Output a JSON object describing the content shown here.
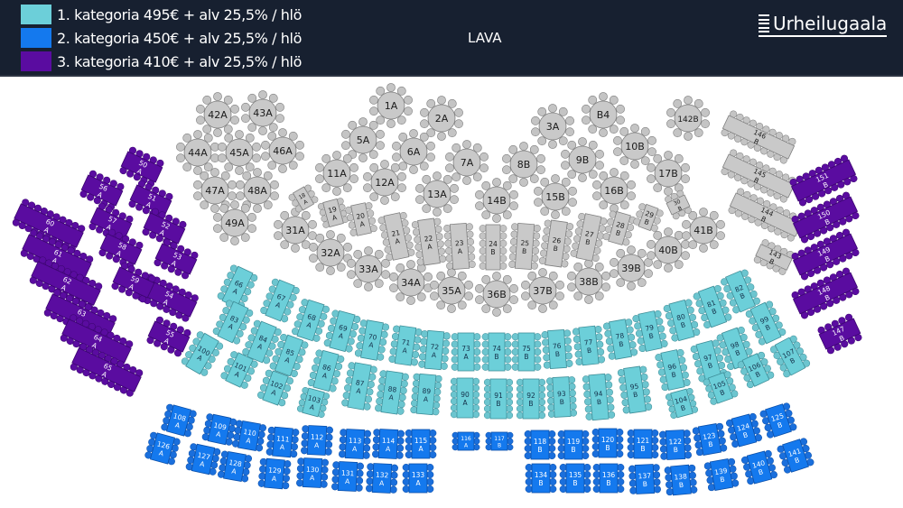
{
  "legend": [
    {
      "label": "1. kategoria 495€ + alv 25,5% / hlö",
      "color": "#6ccfd9"
    },
    {
      "label": "2. kategoria 450€ + alv 25,5% / hlö",
      "color": "#1479ee"
    },
    {
      "label": "3. kategoria 410€ + alv 25,5% / hlö",
      "color": "#5a0ca0"
    }
  ],
  "stage_label": "LAVA",
  "logo_text": "Urheilugaala",
  "colors": {
    "header_bg": "#172030",
    "unassigned": "#c8c8c8",
    "category_1": "#6ccfd9",
    "category_2": "#1479ee",
    "category_3": "#5a0ca0"
  },
  "tables": [
    {
      "label": "1A",
      "cat": "0"
    },
    {
      "label": "2A",
      "cat": "0"
    },
    {
      "label": "3A",
      "cat": "0"
    },
    {
      "label": "B4",
      "cat": "0"
    },
    {
      "label": "142B",
      "cat": "0"
    },
    {
      "label": "5A",
      "cat": "0"
    },
    {
      "label": "6A",
      "cat": "0"
    },
    {
      "label": "7A",
      "cat": "0"
    },
    {
      "label": "8B",
      "cat": "0"
    },
    {
      "label": "9B",
      "cat": "0"
    },
    {
      "label": "10B",
      "cat": "0"
    },
    {
      "label": "11A",
      "cat": "0"
    },
    {
      "label": "12A",
      "cat": "0"
    },
    {
      "label": "13A",
      "cat": "0"
    },
    {
      "label": "14B",
      "cat": "0"
    },
    {
      "label": "15B",
      "cat": "0"
    },
    {
      "label": "16B",
      "cat": "0"
    },
    {
      "label": "17B",
      "cat": "0"
    },
    {
      "label": "31A",
      "cat": "0"
    },
    {
      "label": "32A",
      "cat": "0"
    },
    {
      "label": "33A",
      "cat": "0"
    },
    {
      "label": "34A",
      "cat": "0"
    },
    {
      "label": "35A",
      "cat": "0"
    },
    {
      "label": "36B",
      "cat": "0"
    },
    {
      "label": "37B",
      "cat": "0"
    },
    {
      "label": "38B",
      "cat": "0"
    },
    {
      "label": "39B",
      "cat": "0"
    },
    {
      "label": "40B",
      "cat": "0"
    },
    {
      "label": "41B",
      "cat": "0"
    },
    {
      "label": "42A",
      "cat": "0"
    },
    {
      "label": "43A",
      "cat": "0"
    },
    {
      "label": "44A",
      "cat": "0"
    },
    {
      "label": "45A",
      "cat": "0"
    },
    {
      "label": "46A",
      "cat": "0"
    },
    {
      "label": "47A",
      "cat": "0"
    },
    {
      "label": "48A",
      "cat": "0"
    },
    {
      "label": "49A",
      "cat": "0"
    },
    {
      "num": "18",
      "row": "A",
      "cat": "0"
    },
    {
      "num": "19",
      "row": "A",
      "cat": "0"
    },
    {
      "num": "20",
      "row": "A",
      "cat": "0"
    },
    {
      "num": "21",
      "row": "A",
      "cat": "0"
    },
    {
      "num": "22",
      "row": "A",
      "cat": "0"
    },
    {
      "num": "23",
      "row": "A",
      "cat": "0"
    },
    {
      "num": "24",
      "row": "B",
      "cat": "0"
    },
    {
      "num": "25",
      "row": "B",
      "cat": "0"
    },
    {
      "num": "26",
      "row": "B",
      "cat": "0"
    },
    {
      "num": "27",
      "row": "B",
      "cat": "0"
    },
    {
      "num": "28",
      "row": "B",
      "cat": "0"
    },
    {
      "num": "29",
      "row": "B",
      "cat": "0"
    },
    {
      "num": "30",
      "row": "B",
      "cat": "0"
    },
    {
      "num": "146",
      "row": "B",
      "cat": "0"
    },
    {
      "num": "145",
      "row": "B",
      "cat": "0"
    },
    {
      "num": "144",
      "row": "B",
      "cat": "0"
    },
    {
      "num": "143",
      "row": "B",
      "cat": "0"
    },
    {
      "num": "66",
      "row": "A",
      "cat": "1"
    },
    {
      "num": "67",
      "row": "A",
      "cat": "1"
    },
    {
      "num": "68",
      "row": "A",
      "cat": "1"
    },
    {
      "num": "69",
      "row": "A",
      "cat": "1"
    },
    {
      "num": "70",
      "row": "A",
      "cat": "1"
    },
    {
      "num": "71",
      "row": "A",
      "cat": "1"
    },
    {
      "num": "72",
      "row": "A",
      "cat": "1"
    },
    {
      "num": "73",
      "row": "A",
      "cat": "1"
    },
    {
      "num": "74",
      "row": "B",
      "cat": "1"
    },
    {
      "num": "75",
      "row": "B",
      "cat": "1"
    },
    {
      "num": "76",
      "row": "B",
      "cat": "1"
    },
    {
      "num": "77",
      "row": "B",
      "cat": "1"
    },
    {
      "num": "78",
      "row": "B",
      "cat": "1"
    },
    {
      "num": "79",
      "row": "B",
      "cat": "1"
    },
    {
      "num": "80",
      "row": "B",
      "cat": "1"
    },
    {
      "num": "81",
      "row": "B",
      "cat": "1"
    },
    {
      "num": "82",
      "row": "B",
      "cat": "1"
    },
    {
      "num": "83",
      "row": "A",
      "cat": "1"
    },
    {
      "num": "84",
      "row": "A",
      "cat": "1"
    },
    {
      "num": "85",
      "row": "A",
      "cat": "1"
    },
    {
      "num": "86",
      "row": "A",
      "cat": "1"
    },
    {
      "num": "87",
      "row": "A",
      "cat": "1"
    },
    {
      "num": "88",
      "row": "A",
      "cat": "1"
    },
    {
      "num": "89",
      "row": "A",
      "cat": "1"
    },
    {
      "num": "90",
      "row": "A",
      "cat": "1"
    },
    {
      "num": "91",
      "row": "B",
      "cat": "1"
    },
    {
      "num": "92",
      "row": "B",
      "cat": "1"
    },
    {
      "num": "93",
      "row": "B",
      "cat": "1"
    },
    {
      "num": "94",
      "row": "B",
      "cat": "1"
    },
    {
      "num": "95",
      "row": "B",
      "cat": "1"
    },
    {
      "num": "96",
      "row": "B",
      "cat": "1"
    },
    {
      "num": "97",
      "row": "B",
      "cat": "1"
    },
    {
      "num": "98",
      "row": "B",
      "cat": "1"
    },
    {
      "num": "99",
      "row": "B",
      "cat": "1"
    },
    {
      "num": "100",
      "row": "A",
      "cat": "1"
    },
    {
      "num": "101",
      "row": "A",
      "cat": "1"
    },
    {
      "num": "102",
      "row": "A",
      "cat": "1"
    },
    {
      "num": "103",
      "row": "A",
      "cat": "1"
    },
    {
      "num": "104",
      "row": "B",
      "cat": "1"
    },
    {
      "num": "105",
      "row": "B",
      "cat": "1"
    },
    {
      "num": "106",
      "row": "B",
      "cat": "1"
    },
    {
      "num": "107",
      "row": "B",
      "cat": "1"
    },
    {
      "num": "108",
      "row": "A",
      "cat": "2"
    },
    {
      "num": "126",
      "row": "A",
      "cat": "2"
    },
    {
      "num": "109",
      "row": "A",
      "cat": "2"
    },
    {
      "num": "127",
      "row": "A",
      "cat": "2"
    },
    {
      "num": "110",
      "row": "A",
      "cat": "2"
    },
    {
      "num": "128",
      "row": "A",
      "cat": "2"
    },
    {
      "num": "111",
      "row": "A",
      "cat": "2"
    },
    {
      "num": "129",
      "row": "A",
      "cat": "2"
    },
    {
      "num": "112",
      "row": "A",
      "cat": "2"
    },
    {
      "num": "130",
      "row": "A",
      "cat": "2"
    },
    {
      "num": "113",
      "row": "A",
      "cat": "2"
    },
    {
      "num": "131",
      "row": "A",
      "cat": "2"
    },
    {
      "num": "114",
      "row": "A",
      "cat": "2"
    },
    {
      "num": "132",
      "row": "A",
      "cat": "2"
    },
    {
      "num": "115",
      "row": "A",
      "cat": "2"
    },
    {
      "num": "133",
      "row": "A",
      "cat": "2"
    },
    {
      "num": "116",
      "row": "A",
      "cat": "2"
    },
    {
      "num": "117",
      "row": "B",
      "cat": "2"
    },
    {
      "num": "118",
      "row": "B",
      "cat": "2"
    },
    {
      "num": "134",
      "row": "B",
      "cat": "2"
    },
    {
      "num": "119",
      "row": "B",
      "cat": "2"
    },
    {
      "num": "135",
      "row": "B",
      "cat": "2"
    },
    {
      "num": "120",
      "row": "B",
      "cat": "2"
    },
    {
      "num": "136",
      "row": "B",
      "cat": "2"
    },
    {
      "num": "121",
      "row": "B",
      "cat": "2"
    },
    {
      "num": "137",
      "row": "B",
      "cat": "2"
    },
    {
      "num": "122",
      "row": "B",
      "cat": "2"
    },
    {
      "num": "138",
      "row": "B",
      "cat": "2"
    },
    {
      "num": "123",
      "row": "B",
      "cat": "2"
    },
    {
      "num": "139",
      "row": "B",
      "cat": "2"
    },
    {
      "num": "124",
      "row": "B",
      "cat": "2"
    },
    {
      "num": "140",
      "row": "B",
      "cat": "2"
    },
    {
      "num": "125",
      "row": "B",
      "cat": "2"
    },
    {
      "num": "141",
      "row": "B",
      "cat": "2"
    },
    {
      "num": "50",
      "row": "A",
      "cat": "3"
    },
    {
      "num": "51",
      "row": "A",
      "cat": "3"
    },
    {
      "num": "52",
      "row": "A",
      "cat": "3"
    },
    {
      "num": "53",
      "row": "A",
      "cat": "3"
    },
    {
      "num": "54",
      "row": "A",
      "cat": "3"
    },
    {
      "num": "55",
      "row": "A",
      "cat": "3"
    },
    {
      "num": "56",
      "row": "A",
      "cat": "3"
    },
    {
      "num": "57",
      "row": "A",
      "cat": "3"
    },
    {
      "num": "58",
      "row": "A",
      "cat": "3"
    },
    {
      "num": "59",
      "row": "A",
      "cat": "3"
    },
    {
      "num": "60",
      "row": "A",
      "cat": "3"
    },
    {
      "num": "61",
      "row": "A",
      "cat": "3"
    },
    {
      "num": "62",
      "row": "A",
      "cat": "3"
    },
    {
      "num": "63",
      "row": "A",
      "cat": "3"
    },
    {
      "num": "64",
      "row": "A",
      "cat": "3"
    },
    {
      "num": "65",
      "row": "A",
      "cat": "3"
    },
    {
      "num": "151",
      "row": "B",
      "cat": "3"
    },
    {
      "num": "150",
      "row": "B",
      "cat": "3"
    },
    {
      "num": "149",
      "row": "B",
      "cat": "3"
    },
    {
      "num": "148",
      "row": "B",
      "cat": "3"
    },
    {
      "num": "147",
      "row": "B",
      "cat": "3"
    }
  ]
}
